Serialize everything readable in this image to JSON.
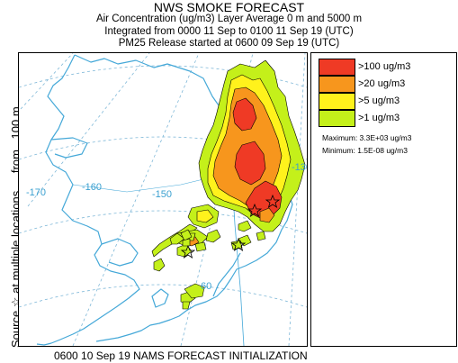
{
  "header": {
    "title": "NWS SMOKE FORECAST",
    "line1": "Air Concentration (ug/m3) Layer Average    0 m and  5000 m",
    "line2": "Integrated from 0000 11 Sep to 0100 11 Sep 19 (UTC)",
    "line3": "PM25 Release started at 0600 09 Sep 19 (UTC)"
  },
  "side_label": {
    "source": "Source",
    "star": "☆",
    "rest": "at multiple locations",
    "from": "from",
    "height": "100 m"
  },
  "legend": {
    "items": [
      {
        "label": ">100 ug/m3",
        "color": "#ef3a25"
      },
      {
        "label": ">20 ug/m3",
        "color": "#f7961d"
      },
      {
        "label": ">5 ug/m3",
        "color": "#fff21c"
      },
      {
        "label": ">1 ug/m3",
        "color": "#c4f01a"
      }
    ],
    "maximum": "Maximum: 3.3E+03 ug/m3",
    "minimum": "Minimum: 1.5E-08 ug/m3"
  },
  "map": {
    "grid_labels": [
      "-170",
      "-160",
      "-150",
      "-130",
      "60"
    ],
    "coast_color": "#44a8d8",
    "grid_color": "#7fb8d8"
  },
  "footer": "0600 10 Sep 19 NAMS FORECAST INITIALIZATION"
}
